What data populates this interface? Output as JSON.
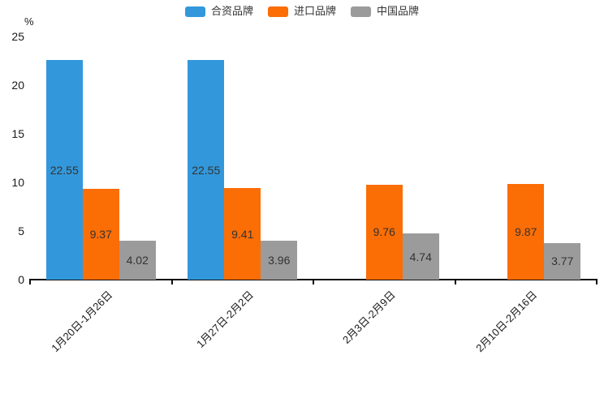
{
  "chart_data": {
    "type": "bar",
    "title": "",
    "unit": "%",
    "categories": [
      "1月20日-1月26日",
      "1月27日-2月2日",
      "2月3日-2月9日",
      "2月10日-2月16日"
    ],
    "series": [
      {
        "name": "合资品牌",
        "color": "#3398DB",
        "values": [
          22.55,
          22.55,
          null,
          null
        ]
      },
      {
        "name": "进口品牌",
        "color": "#FB6D05",
        "values": [
          9.37,
          9.41,
          9.76,
          9.87
        ]
      },
      {
        "name": "中国品牌",
        "color": "#9B9B9B",
        "values": [
          4.02,
          3.96,
          4.74,
          3.77
        ]
      }
    ],
    "ylim": [
      0,
      25
    ],
    "yticks": [
      0,
      5,
      10,
      15,
      20,
      25
    ],
    "grid": false,
    "legend_position": "top",
    "bar_labels_inside": true,
    "axis_color": "#0d0d0d"
  }
}
